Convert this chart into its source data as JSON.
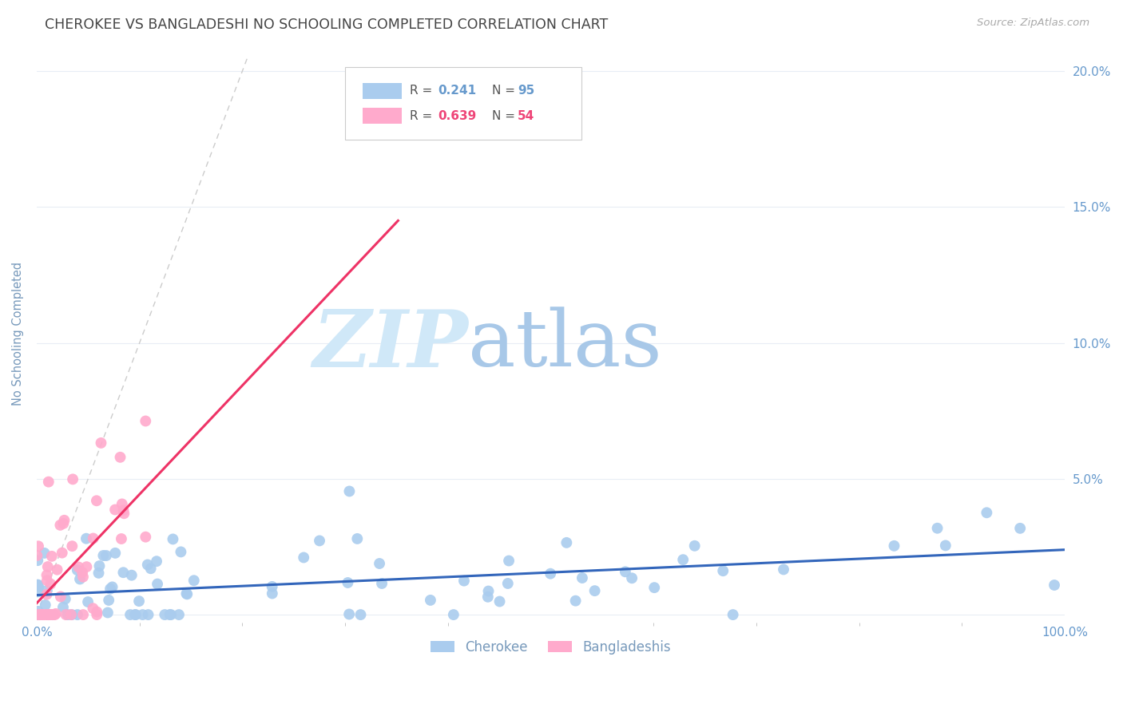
{
  "title": "CHEROKEE VS BANGLADESHI NO SCHOOLING COMPLETED CORRELATION CHART",
  "source": "Source: ZipAtlas.com",
  "ylabel": "No Schooling Completed",
  "xlim": [
    0,
    1.0
  ],
  "ylim": [
    -0.003,
    0.21
  ],
  "cherokee_color": "#aaccee",
  "bangladeshi_color": "#ffaacc",
  "trendline_cherokee_color": "#3366bb",
  "trendline_bangladeshi_color": "#ee3366",
  "diagonal_color": "#cccccc",
  "watermark_zip_color": "#cce0f5",
  "watermark_atlas_color": "#99bbdd",
  "background_color": "#ffffff",
  "grid_color": "#e8edf5",
  "title_color": "#444444",
  "axis_label_color": "#7799bb",
  "tick_label_color": "#6699cc",
  "source_color": "#aaaaaa",
  "legend_border_color": "#cccccc",
  "cherokee_r": 0.241,
  "cherokee_n": 95,
  "bangladeshi_r": 0.639,
  "bangladeshi_n": 54
}
